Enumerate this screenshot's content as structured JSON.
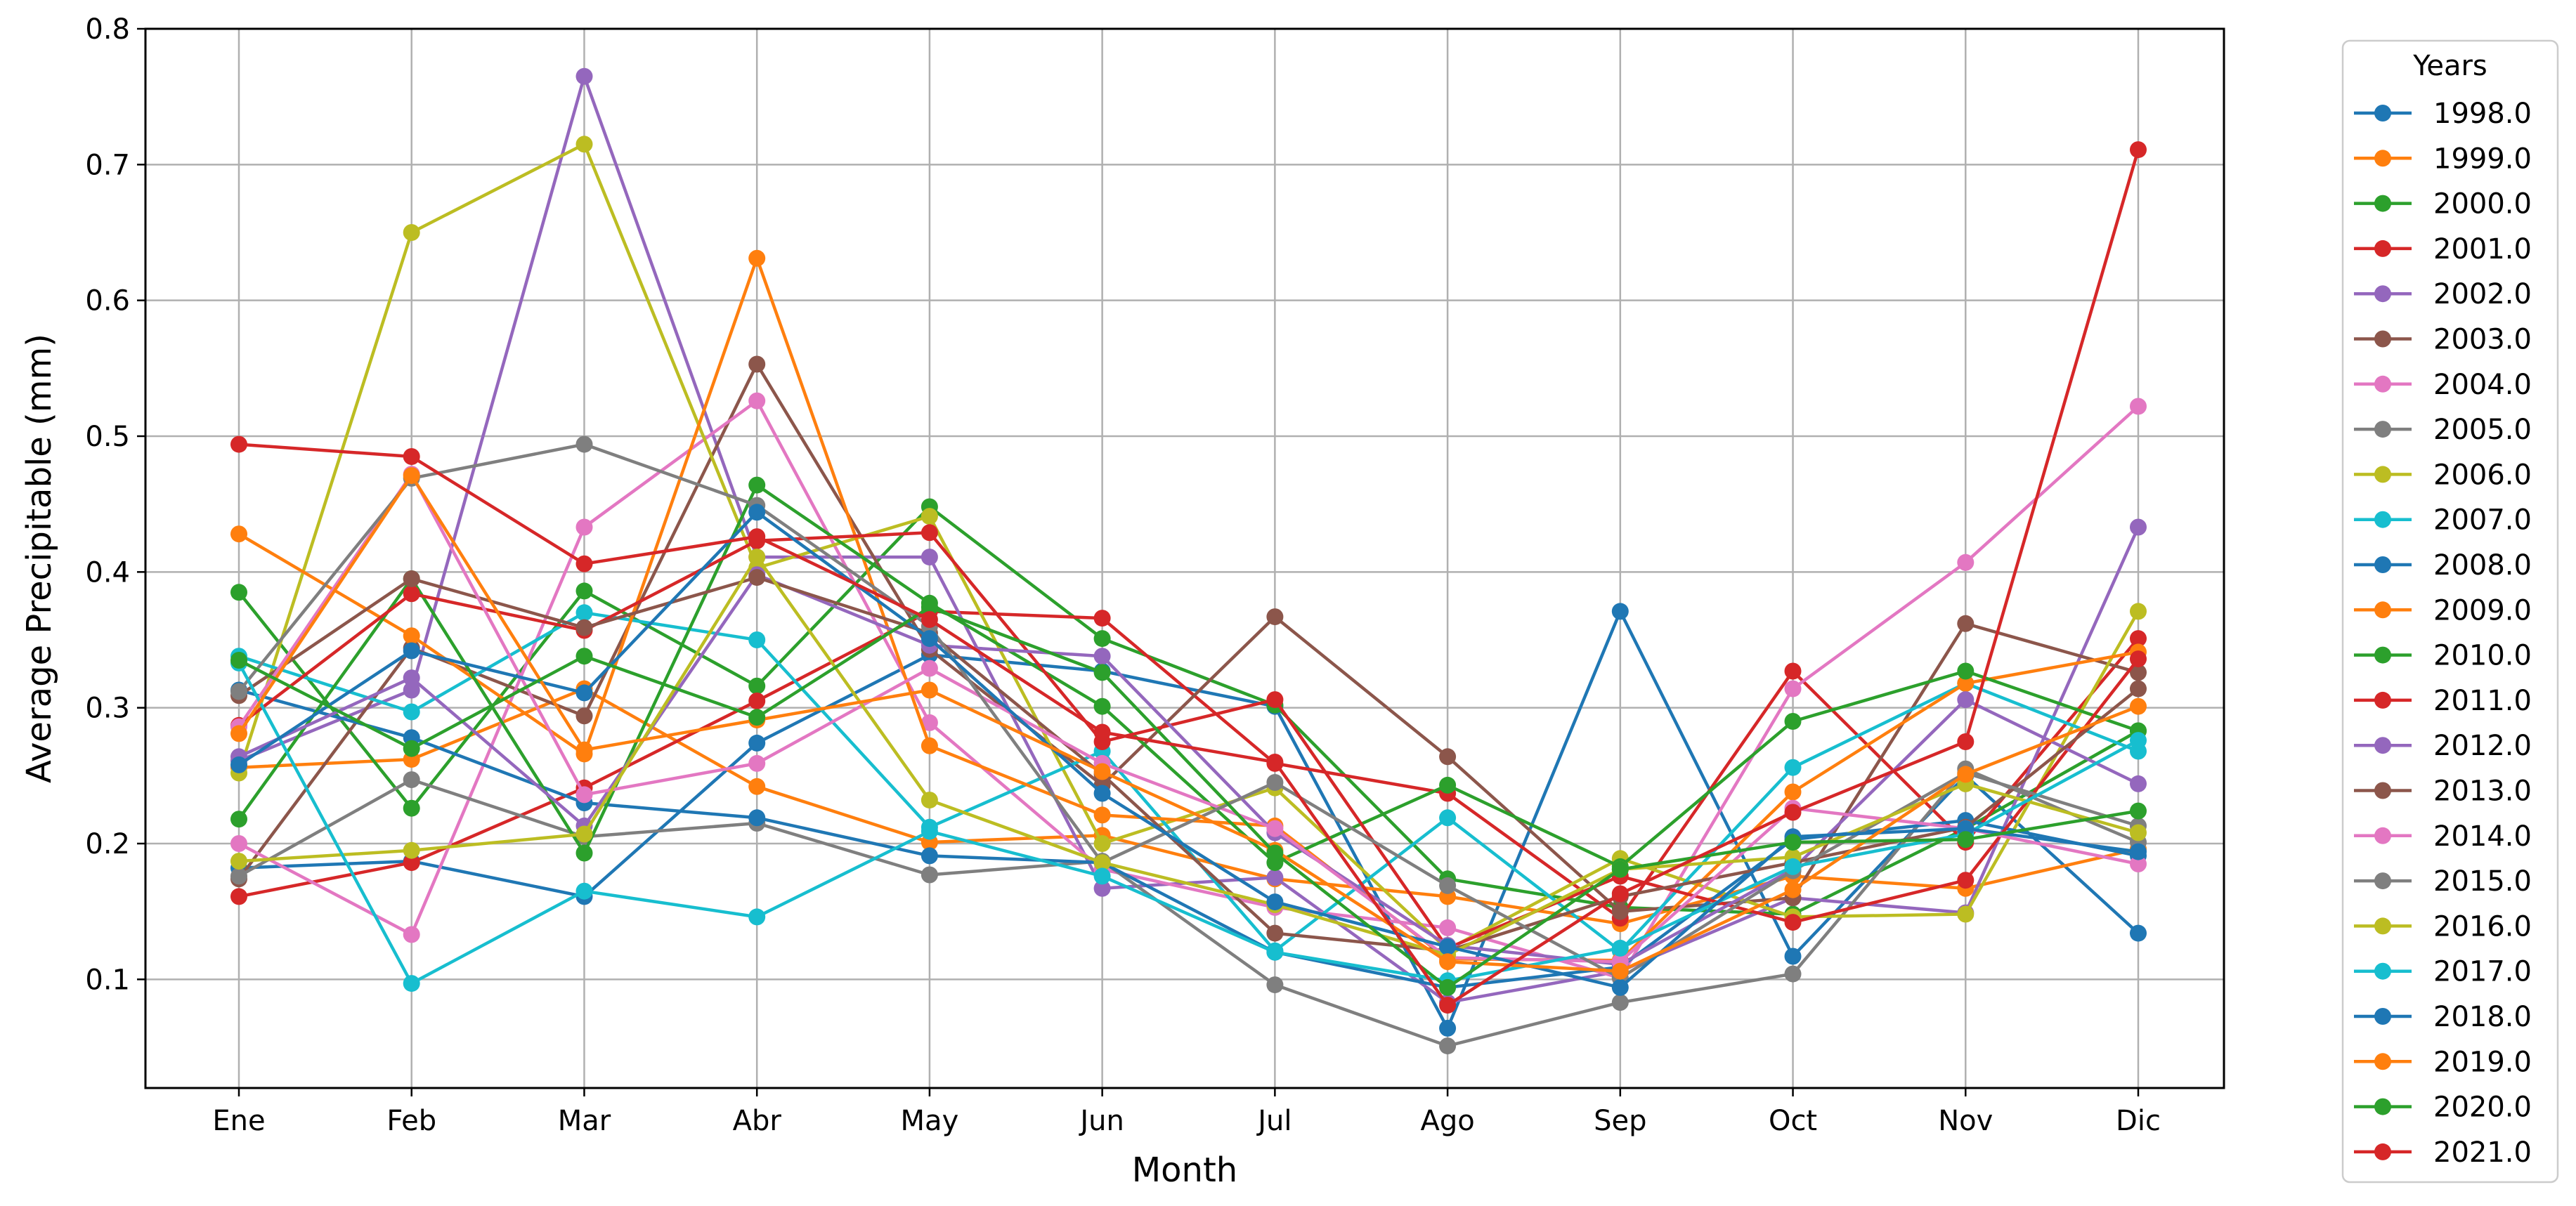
{
  "chart_data": {
    "type": "line",
    "title": "",
    "xlabel": "Month",
    "ylabel": "Average Precipitable (mm)",
    "categories": [
      "Ene",
      "Feb",
      "Mar",
      "Abr",
      "May",
      "Jun",
      "Jul",
      "Ago",
      "Sep",
      "Oct",
      "Nov",
      "Dic"
    ],
    "ylim": [
      0.02,
      0.8
    ],
    "yticks": [
      0.1,
      0.2,
      0.3,
      0.4,
      0.5,
      0.6,
      0.7,
      0.8
    ],
    "ytick_labels": [
      "0.1",
      "0.2",
      "0.3",
      "0.4",
      "0.5",
      "0.6",
      "0.7",
      "0.8"
    ],
    "grid": true,
    "legend": {
      "title": "Years",
      "placement": "outside-right"
    },
    "series": [
      {
        "name": "1998.0",
        "color": "#1f77b4",
        "values": [
          0.182,
          0.187,
          0.161,
          0.274,
          0.339,
          0.327,
          0.301,
          0.064,
          0.371,
          0.117,
          0.25,
          0.134
        ]
      },
      {
        "name": "1999.0",
        "color": "#ff7f0e",
        "values": [
          0.256,
          0.262,
          0.314,
          0.242,
          0.201,
          0.206,
          0.174,
          0.161,
          0.141,
          0.176,
          0.167,
          0.196
        ]
      },
      {
        "name": "2000.0",
        "color": "#2ca02c",
        "values": [
          0.385,
          0.226,
          0.386,
          0.316,
          0.448,
          0.351,
          0.302,
          0.174,
          0.153,
          0.148,
          0.211,
          0.283
        ]
      },
      {
        "name": "2001.0",
        "color": "#d62728",
        "values": [
          0.161,
          0.186,
          0.241,
          0.305,
          0.371,
          0.366,
          0.259,
          0.237,
          0.145,
          0.327,
          0.201,
          0.351
        ]
      },
      {
        "name": "2002.0",
        "color": "#9467bd",
        "values": [
          0.261,
          0.313,
          0.765,
          0.411,
          0.411,
          0.167,
          0.175,
          0.083,
          0.106,
          0.16,
          0.149,
          0.433
        ]
      },
      {
        "name": "2003.0",
        "color": "#8c564b",
        "values": [
          0.174,
          0.344,
          0.294,
          0.553,
          0.343,
          0.243,
          0.367,
          0.264,
          0.15,
          0.16,
          0.362,
          0.326
        ]
      },
      {
        "name": "2004.0",
        "color": "#e377c2",
        "values": [
          0.2,
          0.133,
          0.433,
          0.526,
          0.289,
          0.181,
          0.153,
          0.138,
          0.101,
          0.314,
          0.407,
          0.522
        ]
      },
      {
        "name": "2005.0",
        "color": "#7f7f7f",
        "values": [
          0.176,
          0.247,
          0.205,
          0.215,
          0.177,
          0.187,
          0.096,
          0.051,
          0.083,
          0.104,
          0.255,
          0.201
        ]
      },
      {
        "name": "2006.0",
        "color": "#bcbd22",
        "values": [
          0.252,
          0.65,
          0.715,
          0.403,
          0.441,
          0.2,
          0.241,
          0.122,
          0.189,
          0.146,
          0.148,
          0.371
        ]
      },
      {
        "name": "2007.0",
        "color": "#17becf",
        "values": [
          0.338,
          0.297,
          0.37,
          0.35,
          0.212,
          0.268,
          0.121,
          0.219,
          0.121,
          0.256,
          0.318,
          0.268
        ]
      },
      {
        "name": "2008.0",
        "color": "#1f77b4",
        "values": [
          0.313,
          0.278,
          0.23,
          0.219,
          0.191,
          0.186,
          0.12,
          0.094,
          0.109,
          0.203,
          0.217,
          0.191
        ]
      },
      {
        "name": "2009.0",
        "color": "#ff7f0e",
        "values": [
          0.428,
          0.353,
          0.266,
          0.631,
          0.272,
          0.221,
          0.213,
          0.115,
          0.114,
          0.238,
          0.318,
          0.341
        ]
      },
      {
        "name": "2010.0",
        "color": "#2ca02c",
        "values": [
          0.218,
          0.395,
          0.193,
          0.464,
          0.377,
          0.301,
          0.186,
          0.243,
          0.183,
          0.29,
          0.327,
          0.283
        ]
      },
      {
        "name": "2011.0",
        "color": "#d62728",
        "values": [
          0.287,
          0.384,
          0.357,
          0.423,
          0.429,
          0.275,
          0.306,
          0.123,
          0.176,
          0.142,
          0.173,
          0.336
        ]
      },
      {
        "name": "2012.0",
        "color": "#9467bd",
        "values": [
          0.264,
          0.322,
          0.213,
          0.398,
          0.346,
          0.338,
          0.208,
          0.125,
          0.111,
          0.181,
          0.306,
          0.244
        ]
      },
      {
        "name": "2013.0",
        "color": "#8c564b",
        "values": [
          0.309,
          0.395,
          0.359,
          0.396,
          0.355,
          0.251,
          0.134,
          0.121,
          0.161,
          0.186,
          0.212,
          0.314
        ]
      },
      {
        "name": "2014.0",
        "color": "#e377c2",
        "values": [
          0.286,
          0.472,
          0.236,
          0.259,
          0.329,
          0.259,
          0.211,
          0.116,
          0.113,
          0.226,
          0.211,
          0.185
        ]
      },
      {
        "name": "2015.0",
        "color": "#7f7f7f",
        "values": [
          0.312,
          0.469,
          0.494,
          0.449,
          0.36,
          0.186,
          0.245,
          0.169,
          0.101,
          0.18,
          0.252,
          0.213
        ]
      },
      {
        "name": "2016.0",
        "color": "#bcbd22",
        "values": [
          0.187,
          0.195,
          0.207,
          0.411,
          0.232,
          0.186,
          0.155,
          0.118,
          0.181,
          0.19,
          0.244,
          0.208
        ]
      },
      {
        "name": "2017.0",
        "color": "#17becf",
        "values": [
          0.333,
          0.097,
          0.165,
          0.146,
          0.209,
          0.176,
          0.12,
          0.099,
          0.123,
          0.183,
          0.207,
          0.276
        ]
      },
      {
        "name": "2018.0",
        "color": "#1f77b4",
        "values": [
          0.258,
          0.342,
          0.311,
          0.444,
          0.351,
          0.237,
          0.157,
          0.124,
          0.094,
          0.205,
          0.211,
          0.194
        ]
      },
      {
        "name": "2019.0",
        "color": "#ff7f0e",
        "values": [
          0.281,
          0.471,
          0.269,
          0.291,
          0.313,
          0.253,
          0.195,
          0.113,
          0.106,
          0.166,
          0.251,
          0.301
        ]
      },
      {
        "name": "2020.0",
        "color": "#2ca02c",
        "values": [
          0.335,
          0.27,
          0.338,
          0.293,
          0.374,
          0.326,
          0.193,
          0.094,
          0.181,
          0.201,
          0.203,
          0.224
        ]
      },
      {
        "name": "2021.0",
        "color": "#d62728",
        "values": [
          0.494,
          0.485,
          0.406,
          0.426,
          0.365,
          0.282,
          0.26,
          0.081,
          0.163,
          0.223,
          0.275,
          0.711
        ]
      }
    ]
  }
}
